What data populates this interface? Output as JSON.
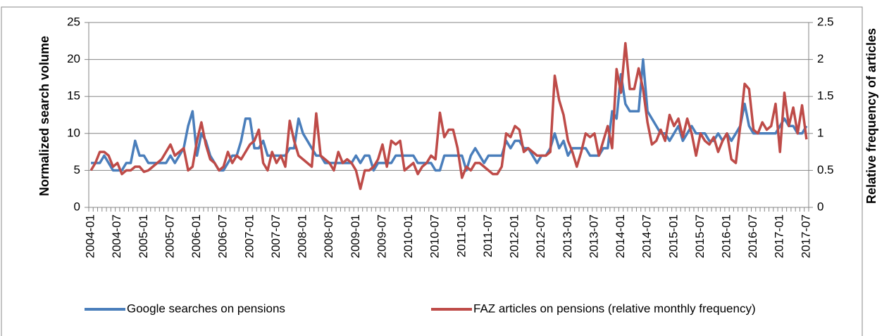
{
  "chart_data": {
    "type": "line",
    "y_label": "Normalized search volume",
    "y2_label": "Relative frequency of articles",
    "categories": [
      "2004-01",
      null,
      null,
      null,
      null,
      null,
      "2004-07",
      null,
      null,
      null,
      null,
      null,
      "2005-01",
      null,
      null,
      null,
      null,
      null,
      "2005-07",
      null,
      null,
      null,
      null,
      null,
      "2006-01",
      null,
      null,
      null,
      null,
      null,
      "2006-07",
      null,
      null,
      null,
      null,
      null,
      "2007-01",
      null,
      null,
      null,
      null,
      null,
      "2007-07",
      null,
      null,
      null,
      null,
      null,
      "2008-01",
      null,
      null,
      null,
      null,
      null,
      "2008-07",
      null,
      null,
      null,
      null,
      null,
      "2009-01",
      null,
      null,
      null,
      null,
      null,
      "2009-07",
      null,
      null,
      null,
      null,
      null,
      "2010-01",
      null,
      null,
      null,
      null,
      null,
      "2010-07",
      null,
      null,
      null,
      null,
      null,
      "2011-01",
      null,
      null,
      null,
      null,
      null,
      "2011-07",
      null,
      null,
      null,
      null,
      null,
      "2012-01",
      null,
      null,
      null,
      null,
      null,
      "2012-07",
      null,
      null,
      null,
      null,
      null,
      "2013-01",
      null,
      null,
      null,
      null,
      null,
      "2013-07",
      null,
      null,
      null,
      null,
      null,
      "2014-01",
      null,
      null,
      null,
      null,
      null,
      "2014-07",
      null,
      null,
      null,
      null,
      null,
      "2015-01",
      null,
      null,
      null,
      null,
      null,
      "2015-07",
      null,
      null,
      null,
      null,
      null,
      "2016-01",
      null,
      null,
      null,
      null,
      null,
      "2016-07",
      null,
      null,
      null,
      null,
      null,
      "2017-01",
      null,
      null,
      null,
      null,
      null,
      "2017-07"
    ],
    "series": [
      {
        "name": "Google searches on pensions",
        "color": "#4a7ebb",
        "values": [
          6,
          6,
          6,
          7,
          6,
          5,
          5,
          5,
          6,
          6,
          9,
          7,
          7,
          6,
          6,
          6,
          6,
          6,
          7,
          6,
          7,
          8,
          11,
          13,
          7,
          10,
          9,
          7,
          6,
          5,
          5,
          6,
          7,
          7,
          9,
          12,
          12,
          8,
          8,
          9,
          7,
          7,
          7,
          7,
          7,
          8,
          8,
          12,
          10,
          9,
          8,
          7,
          7,
          6,
          6,
          6,
          6,
          6,
          6,
          6,
          7,
          6,
          7,
          7,
          5,
          6,
          6,
          6,
          6,
          7,
          7,
          7,
          7,
          7,
          6,
          6,
          6,
          6,
          5,
          5,
          7,
          7,
          7,
          7,
          7,
          5,
          7,
          8,
          7,
          6,
          7,
          7,
          7,
          7,
          9,
          8,
          9,
          9,
          8,
          8,
          7,
          6,
          7,
          7,
          8,
          10,
          8,
          9,
          7,
          8,
          8,
          8,
          8,
          7,
          7,
          7,
          8,
          8,
          13,
          12,
          18,
          14,
          13,
          13,
          13,
          20,
          13,
          12,
          11,
          10,
          10,
          9,
          10,
          11,
          9,
          10,
          11,
          10,
          10,
          10,
          9,
          9,
          10,
          9,
          10,
          9,
          10,
          11,
          14,
          11,
          10,
          10,
          10,
          10,
          10,
          10,
          11,
          12,
          11,
          11,
          10,
          10,
          11
        ]
      },
      {
        "name": "FAZ articles on pensions (relative monthly frequency)",
        "color": "#be4b48",
        "axis": "y2",
        "values": [
          0.5,
          0.6,
          0.75,
          0.75,
          0.7,
          0.55,
          0.6,
          0.45,
          0.5,
          0.5,
          0.55,
          0.55,
          0.48,
          0.5,
          0.55,
          0.6,
          0.65,
          0.75,
          0.85,
          0.7,
          0.75,
          0.8,
          0.5,
          0.55,
          0.9,
          1.15,
          0.85,
          0.65,
          0.6,
          0.5,
          0.55,
          0.75,
          0.6,
          0.7,
          0.65,
          0.75,
          0.85,
          0.9,
          1.05,
          0.6,
          0.5,
          0.75,
          0.6,
          0.7,
          0.55,
          1.17,
          0.9,
          0.7,
          0.65,
          0.6,
          0.55,
          1.27,
          0.7,
          0.65,
          0.6,
          0.5,
          0.75,
          0.6,
          0.65,
          0.6,
          0.5,
          0.25,
          0.5,
          0.5,
          0.55,
          0.65,
          0.85,
          0.55,
          0.9,
          0.85,
          0.9,
          0.5,
          0.55,
          0.6,
          0.45,
          0.55,
          0.6,
          0.7,
          0.65,
          1.28,
          0.95,
          1.05,
          1.05,
          0.8,
          0.4,
          0.55,
          0.5,
          0.6,
          0.6,
          0.55,
          0.5,
          0.45,
          0.45,
          0.55,
          1.0,
          0.95,
          1.1,
          1.05,
          0.75,
          0.8,
          0.75,
          0.7,
          0.7,
          0.7,
          0.75,
          1.78,
          1.45,
          1.25,
          0.9,
          0.75,
          0.55,
          0.75,
          1.0,
          0.95,
          1.0,
          0.7,
          0.9,
          1.1,
          0.8,
          1.87,
          1.55,
          2.22,
          1.6,
          1.6,
          1.88,
          1.6,
          1.15,
          0.85,
          0.9,
          1.05,
          0.9,
          1.25,
          1.1,
          1.2,
          0.95,
          1.2,
          1.0,
          0.7,
          1.0,
          0.9,
          0.85,
          0.95,
          0.75,
          0.9,
          1.0,
          0.65,
          0.6,
          1.1,
          1.67,
          1.6,
          1.05,
          1.0,
          1.15,
          1.05,
          1.1,
          1.4,
          0.75,
          1.55,
          1.1,
          1.35,
          1.0,
          1.38,
          0.92
        ]
      }
    ],
    "ylim": [
      0,
      25
    ],
    "yticks": [
      0,
      5,
      10,
      15,
      20,
      25
    ],
    "y2lim": [
      0,
      2.5
    ],
    "y2ticks": [
      0,
      0.5,
      1,
      1.5,
      2,
      2.5
    ],
    "grid": true,
    "legend": "bottom"
  }
}
